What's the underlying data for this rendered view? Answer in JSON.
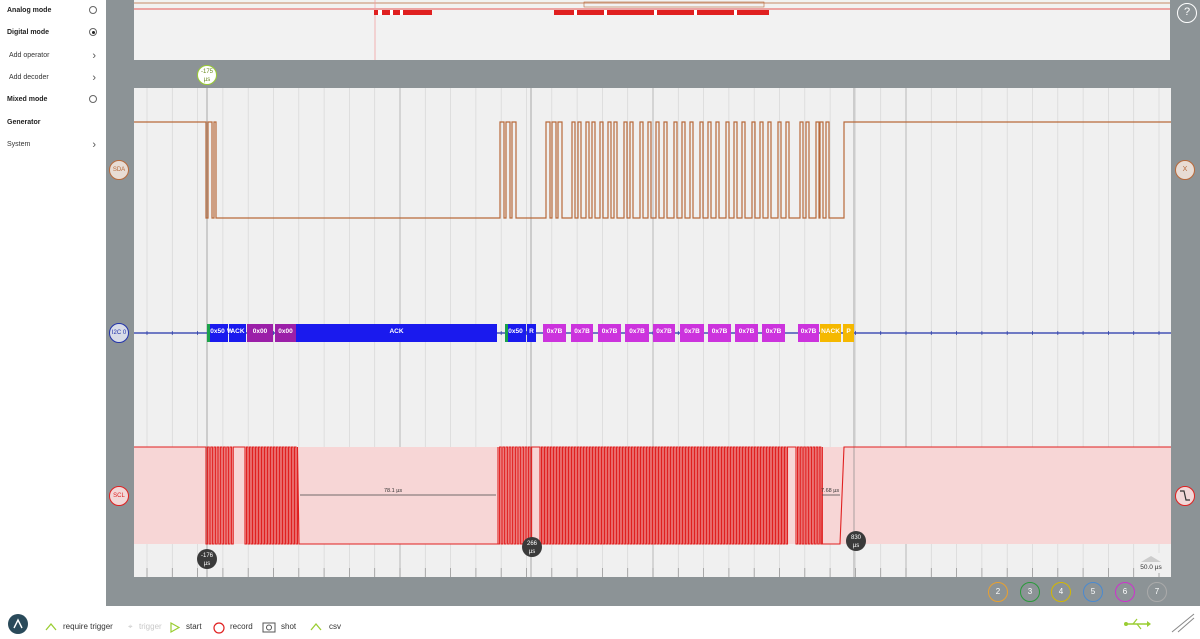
{
  "sidebar": {
    "items": [
      {
        "label": "Analog mode",
        "control": "radio",
        "selected": false
      },
      {
        "label": "Digital mode",
        "control": "radio",
        "selected": true
      },
      {
        "label": "Add operator",
        "control": "chevron"
      },
      {
        "label": "Add decoder",
        "control": "chevron"
      },
      {
        "label": "Mixed mode",
        "control": "radio",
        "selected": false
      },
      {
        "label": "Generator",
        "control": "none"
      },
      {
        "label": "System",
        "control": "chevron"
      }
    ]
  },
  "help": {
    "label": "?"
  },
  "channels": {
    "sda": {
      "label": "SDA",
      "color": "#b8693a",
      "right_label": "X"
    },
    "i2c": {
      "label": "I2C 0",
      "color": "#2233aa"
    },
    "scl": {
      "label": "SCL",
      "color": "#e02020"
    }
  },
  "trigger_marker": {
    "label": "-175",
    "unit": "µs",
    "color": "#9acd32"
  },
  "cursors": [
    {
      "label": "-176",
      "unit": "µs"
    },
    {
      "label": "266",
      "unit": "µs"
    },
    {
      "label": "830",
      "unit": "µs"
    }
  ],
  "measurements": [
    {
      "label": "78.1 µs"
    },
    {
      "label": "7.68 µs"
    }
  ],
  "decoder_segments": [
    {
      "label": "0x50",
      "color": "#1a1aee"
    },
    {
      "label": "W",
      "color": "#1a1aee"
    },
    {
      "label": "ACK",
      "color": "#1a1aee"
    },
    {
      "label": "0x00",
      "color": "#9b1fa8"
    },
    {
      "label": "0x00",
      "color": "#9b1fa8"
    },
    {
      "label": "ACK",
      "color": "#1a1aee"
    },
    {
      "label": "0x50",
      "color": "#1a1aee"
    },
    {
      "label": "R",
      "color": "#1a1aee"
    },
    {
      "label": "0x7B",
      "color": "#cc33dd"
    },
    {
      "label": "0x7B",
      "color": "#cc33dd"
    },
    {
      "label": "0x7B",
      "color": "#cc33dd"
    },
    {
      "label": "0x7B",
      "color": "#cc33dd"
    },
    {
      "label": "0x7B",
      "color": "#cc33dd"
    },
    {
      "label": "0x7B",
      "color": "#cc33dd"
    },
    {
      "label": "0x7B",
      "color": "#cc33dd"
    },
    {
      "label": "0x7B",
      "color": "#cc33dd"
    },
    {
      "label": "0x7B",
      "color": "#cc33dd"
    },
    {
      "label": "0x7B",
      "color": "#cc33dd"
    },
    {
      "label": "NACK",
      "color": "#f5b800"
    },
    {
      "label": "P",
      "color": "#f5b800"
    }
  ],
  "timescale": {
    "label": "50.0 µs"
  },
  "bottom_channels": [
    {
      "label": "2",
      "color": "#e8a030"
    },
    {
      "label": "3",
      "color": "#2a9a3a"
    },
    {
      "label": "4",
      "color": "#d4b800"
    },
    {
      "label": "5",
      "color": "#4a8ad0"
    },
    {
      "label": "6",
      "color": "#cc33cc"
    },
    {
      "label": "7",
      "color": "#aaaaaa"
    }
  ],
  "toolbar": {
    "require_trigger": "require trigger",
    "trigger": "trigger",
    "start": "start",
    "record": "record",
    "shot": "shot",
    "csv": "csv"
  }
}
